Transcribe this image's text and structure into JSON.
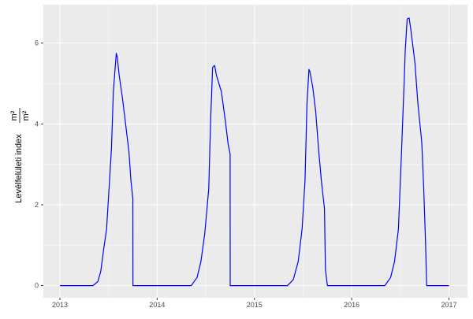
{
  "chart_data": {
    "type": "line",
    "title": "",
    "xlabel": "",
    "ylabel": "Levélfelületi index",
    "ylabel_unit_num": "m²",
    "ylabel_unit_den": "m²",
    "xlim": [
      2012.83,
      2017.19
    ],
    "ylim": [
      -0.3,
      6.95
    ],
    "x_ticks": [
      2013,
      2014,
      2015,
      2016,
      2017
    ],
    "x_tick_labels": [
      "2013",
      "2014",
      "2015",
      "2016",
      "2017"
    ],
    "y_ticks": [
      0,
      2,
      4,
      6
    ],
    "y_tick_labels": [
      "0",
      "2",
      "4",
      "6"
    ],
    "grid": true,
    "line_color": "#0000ff",
    "panel_color": "#ebebeb",
    "series": [
      {
        "x": [
          2013.0,
          2013.34,
          2013.39,
          2013.42,
          2013.45,
          2013.48,
          2013.5,
          2013.53,
          2013.55,
          2013.58,
          2013.59,
          2013.61,
          2013.64,
          2013.67,
          2013.71,
          2013.73,
          2013.75,
          2013.751,
          2014.35,
          2014.41,
          2014.45,
          2014.49,
          2014.53,
          2014.55,
          2014.57,
          2014.59,
          2014.61,
          2014.66,
          2014.7,
          2014.73,
          2014.75,
          2014.751,
          2015.34,
          2015.4,
          2015.45,
          2015.49,
          2015.52,
          2015.54,
          2015.56,
          2015.57,
          2015.6,
          2015.63,
          2015.66,
          2015.69,
          2015.72,
          2015.73,
          2015.75,
          2016.34,
          2016.4,
          2016.44,
          2016.48,
          2016.51,
          2016.54,
          2016.55,
          2016.57,
          2016.59,
          2016.61,
          2016.65,
          2016.68,
          2016.72,
          2016.74,
          2016.76,
          2016.77,
          2017.0
        ],
        "y": [
          0,
          0,
          0.1,
          0.35,
          0.9,
          1.4,
          2.2,
          3.4,
          4.8,
          5.75,
          5.65,
          5.2,
          4.7,
          4.1,
          3.3,
          2.6,
          2.15,
          0,
          0,
          0.2,
          0.6,
          1.3,
          2.4,
          4.1,
          5.4,
          5.45,
          5.2,
          4.8,
          4.1,
          3.5,
          3.25,
          0,
          0,
          0.15,
          0.6,
          1.4,
          2.6,
          4.5,
          5.35,
          5.3,
          4.9,
          4.3,
          3.35,
          2.55,
          1.9,
          0.4,
          0,
          0,
          0.2,
          0.6,
          1.4,
          3.2,
          5.1,
          5.8,
          6.6,
          6.62,
          6.3,
          5.5,
          4.5,
          3.55,
          2.4,
          1.0,
          0,
          0
        ]
      }
    ]
  }
}
